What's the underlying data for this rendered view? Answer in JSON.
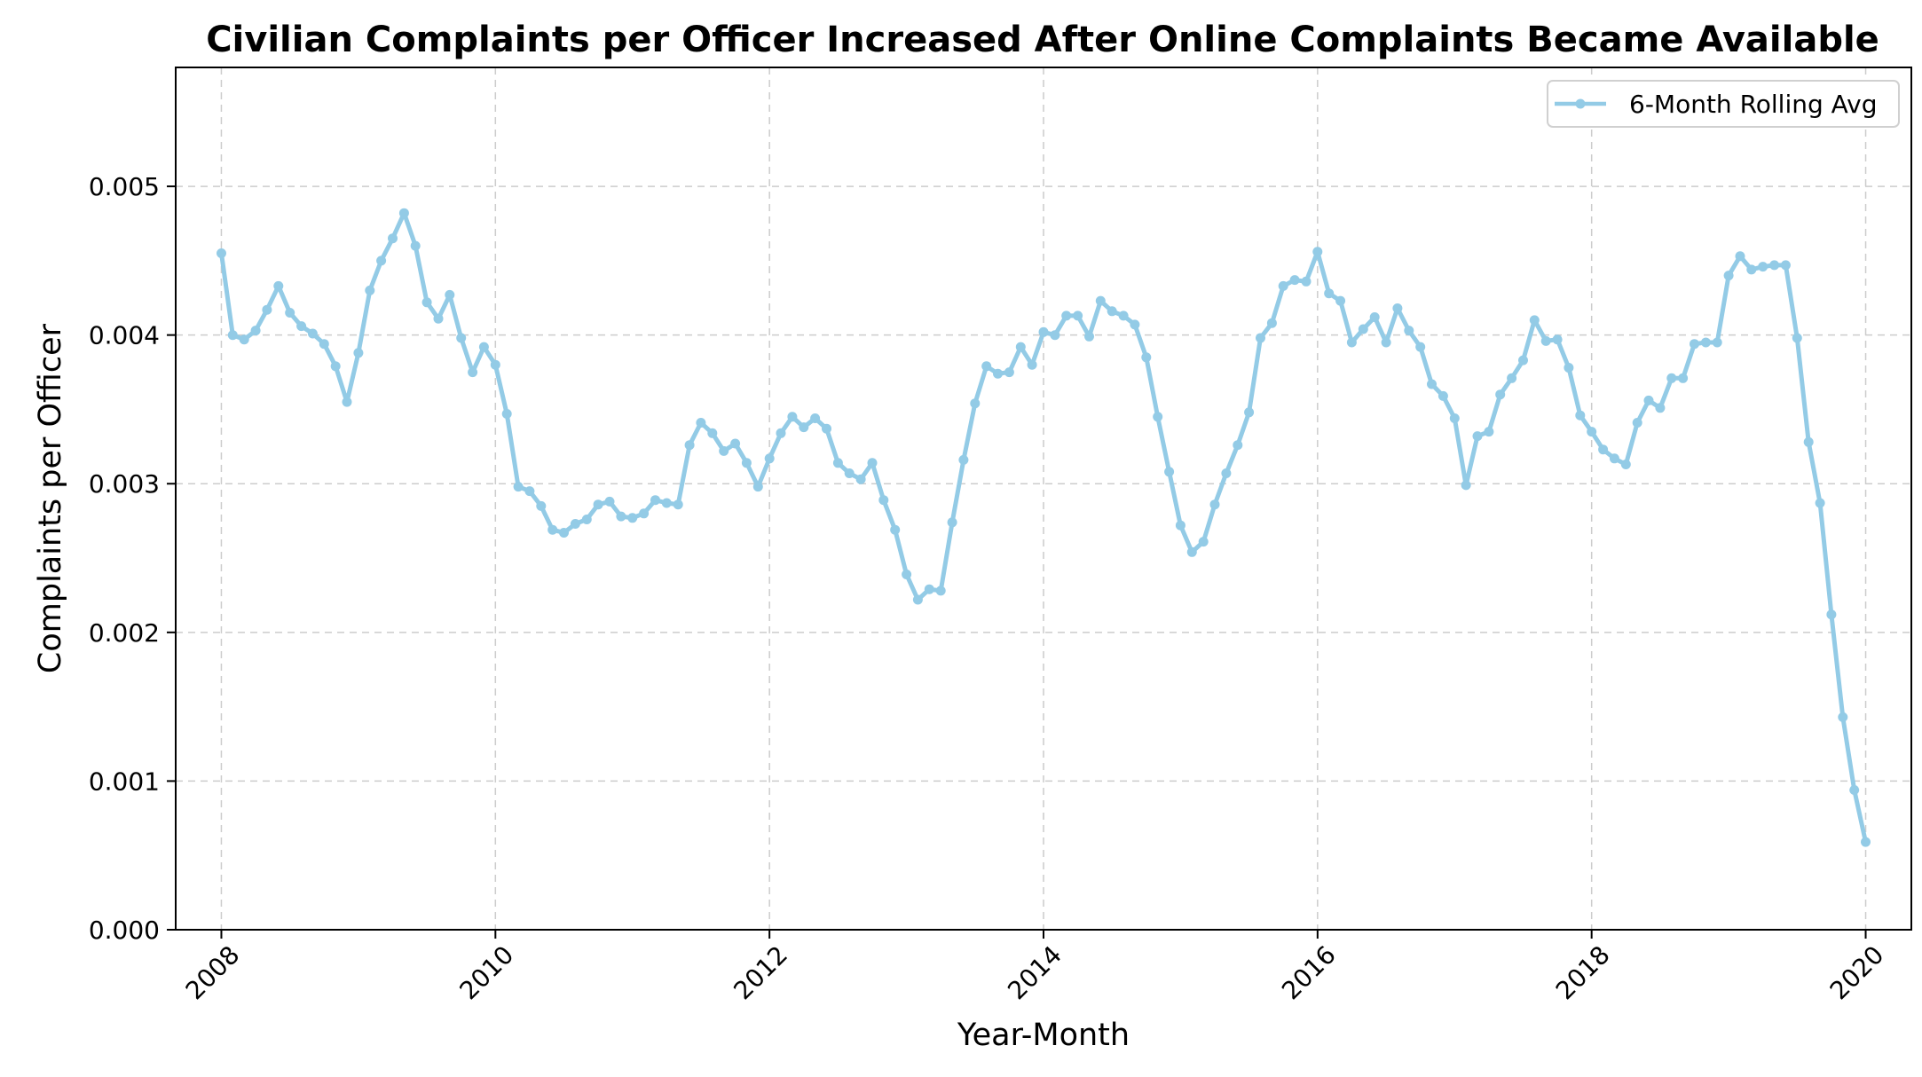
{
  "chart_data": {
    "type": "line",
    "title": "Civilian Complaints per Officer Increased After Online Complaints Became Available",
    "xlabel": "Year-Month",
    "ylabel": "Complaints per Officer",
    "xlim": [
      "2007-09",
      "2020-05"
    ],
    "ylim": [
      0,
      0.0058
    ],
    "x_ticks": [
      "2008",
      "2010",
      "2012",
      "2014",
      "2016",
      "2018",
      "2020"
    ],
    "y_ticks": [
      "0.000",
      "0.001",
      "0.002",
      "0.003",
      "0.004",
      "0.005"
    ],
    "grid": true,
    "legend_position": "top-right",
    "series": [
      {
        "name": "6-Month Rolling Avg",
        "color": "#93cbe6",
        "x": [
          "2008-01",
          "2008-02",
          "2008-03",
          "2008-04",
          "2008-05",
          "2008-06",
          "2008-07",
          "2008-08",
          "2008-09",
          "2008-10",
          "2008-11",
          "2008-12",
          "2009-01",
          "2009-02",
          "2009-03",
          "2009-04",
          "2009-05",
          "2009-06",
          "2009-07",
          "2009-08",
          "2009-09",
          "2009-10",
          "2009-11",
          "2009-12",
          "2010-01",
          "2010-02",
          "2010-03",
          "2010-04",
          "2010-05",
          "2010-06",
          "2010-07",
          "2010-08",
          "2010-09",
          "2010-10",
          "2010-11",
          "2010-12",
          "2011-01",
          "2011-02",
          "2011-03",
          "2011-04",
          "2011-05",
          "2011-06",
          "2011-07",
          "2011-08",
          "2011-09",
          "2011-10",
          "2011-11",
          "2011-12",
          "2012-01",
          "2012-02",
          "2012-03",
          "2012-04",
          "2012-05",
          "2012-06",
          "2012-07",
          "2012-08",
          "2012-09",
          "2012-10",
          "2012-11",
          "2012-12",
          "2013-01",
          "2013-02",
          "2013-03",
          "2013-04",
          "2013-05",
          "2013-06",
          "2013-07",
          "2013-08",
          "2013-09",
          "2013-10",
          "2013-11",
          "2013-12",
          "2014-01",
          "2014-02",
          "2014-03",
          "2014-04",
          "2014-05",
          "2014-06",
          "2014-07",
          "2014-08",
          "2014-09",
          "2014-10",
          "2014-11",
          "2014-12",
          "2015-01",
          "2015-02",
          "2015-03",
          "2015-04",
          "2015-05",
          "2015-06",
          "2015-07",
          "2015-08",
          "2015-09",
          "2015-10",
          "2015-11",
          "2015-12",
          "2016-01",
          "2016-02",
          "2016-03",
          "2016-04",
          "2016-05",
          "2016-06",
          "2016-07",
          "2016-08",
          "2016-09",
          "2016-10",
          "2016-11",
          "2016-12",
          "2017-01",
          "2017-02",
          "2017-03",
          "2017-04",
          "2017-05",
          "2017-06",
          "2017-07",
          "2017-08",
          "2017-09",
          "2017-10",
          "2017-11",
          "2017-12",
          "2018-01",
          "2018-02",
          "2018-03",
          "2018-04",
          "2018-05",
          "2018-06",
          "2018-07",
          "2018-08",
          "2018-09",
          "2018-10",
          "2018-11",
          "2018-12",
          "2019-01",
          "2019-02",
          "2019-03",
          "2019-04",
          "2019-05",
          "2019-06",
          "2019-07",
          "2019-08",
          "2019-09",
          "2019-10",
          "2019-11",
          "2019-12",
          "2020-01"
        ],
        "values": [
          0.00455,
          0.004,
          0.00397,
          0.00403,
          0.00417,
          0.00433,
          0.00415,
          0.00406,
          0.00401,
          0.00394,
          0.00379,
          0.00355,
          0.00388,
          0.0043,
          0.0045,
          0.00465,
          0.00482,
          0.0046,
          0.00422,
          0.00411,
          0.00427,
          0.00398,
          0.00375,
          0.00392,
          0.0038,
          0.00347,
          0.00298,
          0.00295,
          0.00285,
          0.00269,
          0.00267,
          0.00273,
          0.00276,
          0.00286,
          0.00288,
          0.00278,
          0.00277,
          0.0028,
          0.00289,
          0.00287,
          0.00286,
          0.00326,
          0.00341,
          0.00334,
          0.00322,
          0.00327,
          0.00314,
          0.00298,
          0.00317,
          0.00334,
          0.00345,
          0.00338,
          0.00344,
          0.00337,
          0.00314,
          0.00307,
          0.00303,
          0.00314,
          0.00289,
          0.00269,
          0.00239,
          0.00222,
          0.00229,
          0.00228,
          0.00274,
          0.00316,
          0.00354,
          0.00379,
          0.00374,
          0.00375,
          0.00392,
          0.0038,
          0.00402,
          0.004,
          0.00413,
          0.00413,
          0.00399,
          0.00423,
          0.00416,
          0.00413,
          0.00407,
          0.00385,
          0.00345,
          0.00308,
          0.00272,
          0.00254,
          0.00261,
          0.00286,
          0.00307,
          0.00326,
          0.00348,
          0.00398,
          0.00408,
          0.00433,
          0.00437,
          0.00436,
          0.00456,
          0.00428,
          0.00423,
          0.00395,
          0.00404,
          0.00412,
          0.00395,
          0.00418,
          0.00403,
          0.00392,
          0.00367,
          0.00359,
          0.00344,
          0.00299,
          0.00332,
          0.00335,
          0.0036,
          0.00371,
          0.00383,
          0.0041,
          0.00396,
          0.00397,
          0.00378,
          0.00346,
          0.00335,
          0.00323,
          0.00317,
          0.00313,
          0.00341,
          0.00356,
          0.00351,
          0.00371,
          0.00371,
          0.00394,
          0.00395,
          0.00395,
          0.0044,
          0.00453,
          0.00444,
          0.00446,
          0.00447,
          0.00447,
          0.00398,
          0.00328,
          0.00287,
          0.00212,
          0.00143,
          0.00094,
          0.00059
        ]
      }
    ]
  }
}
